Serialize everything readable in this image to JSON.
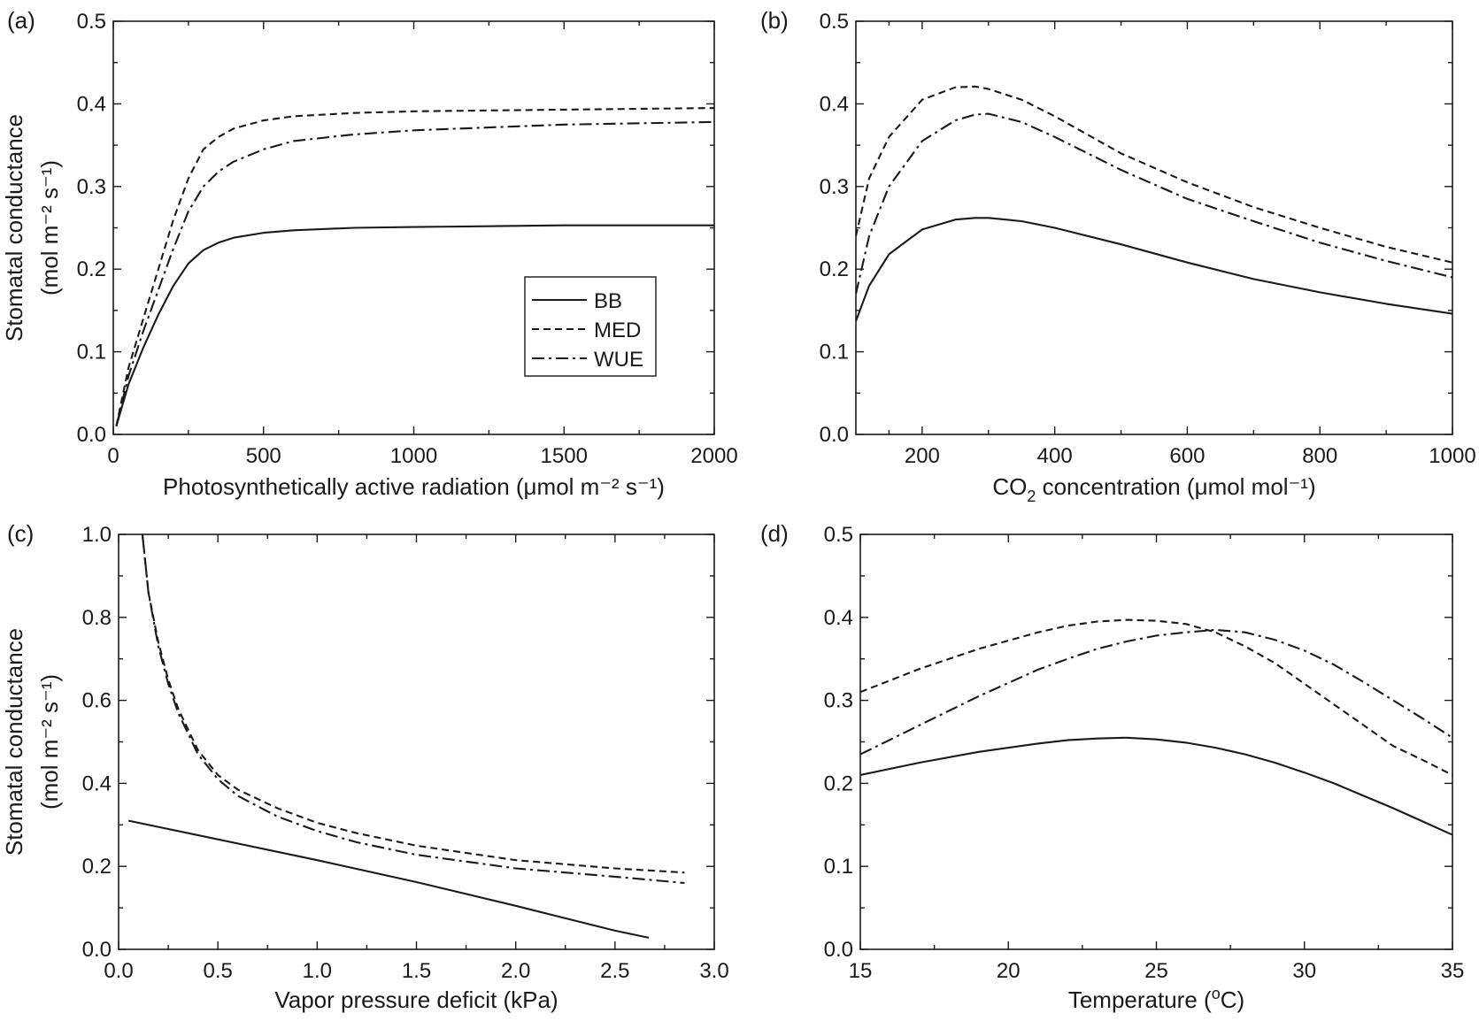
{
  "legend": {
    "entries": [
      {
        "name": "BB",
        "dash": "none"
      },
      {
        "name": "MED",
        "dash": "8 5"
      },
      {
        "name": "WUE",
        "dash": "14 5 3 5"
      }
    ]
  },
  "chart_data": [
    {
      "type": "line",
      "panel_label": "(a)",
      "xlabel": "Photosynthetically active radiation (μmol m⁻² s⁻¹)",
      "ylabel": "Stomatal conductance",
      "ylabel_units": "(mol m⁻² s⁻¹)",
      "xlim": [
        0,
        2000
      ],
      "ylim": [
        0,
        0.5
      ],
      "xticks": [
        0,
        500,
        1000,
        1500,
        2000
      ],
      "xtick_labels": [
        "0",
        "500",
        "1000",
        "1500",
        "2000"
      ],
      "yticks": [
        0.0,
        0.1,
        0.2,
        0.3,
        0.4,
        0.5
      ],
      "ytick_labels": [
        "0.0",
        "0.1",
        "0.2",
        "0.3",
        "0.4",
        "0.5"
      ],
      "legend_position": "center-right",
      "series": [
        {
          "name": "BB",
          "x": [
            10,
            50,
            100,
            150,
            200,
            250,
            300,
            350,
            400,
            500,
            600,
            800,
            1000,
            1500,
            2000
          ],
          "y": [
            0.01,
            0.06,
            0.105,
            0.145,
            0.18,
            0.207,
            0.223,
            0.232,
            0.238,
            0.244,
            0.247,
            0.25,
            0.251,
            0.253,
            0.253
          ]
        },
        {
          "name": "MED",
          "x": [
            10,
            50,
            100,
            150,
            200,
            250,
            300,
            350,
            400,
            500,
            600,
            800,
            1000,
            1500,
            2000
          ],
          "y": [
            0.01,
            0.08,
            0.14,
            0.2,
            0.26,
            0.31,
            0.345,
            0.36,
            0.37,
            0.38,
            0.385,
            0.389,
            0.391,
            0.393,
            0.395
          ]
        },
        {
          "name": "WUE",
          "x": [
            10,
            50,
            100,
            150,
            200,
            250,
            300,
            350,
            400,
            500,
            600,
            800,
            1000,
            1500,
            2000
          ],
          "y": [
            0.01,
            0.07,
            0.125,
            0.175,
            0.225,
            0.27,
            0.3,
            0.318,
            0.33,
            0.345,
            0.355,
            0.363,
            0.368,
            0.375,
            0.378
          ]
        }
      ]
    },
    {
      "type": "line",
      "panel_label": "(b)",
      "xlabel_prefix": "CO",
      "xlabel_sub": "2",
      "xlabel_suffix": " concentration (μmol mol⁻¹)",
      "xlim": [
        100,
        1000
      ],
      "ylim": [
        0,
        0.5
      ],
      "xticks": [
        200,
        400,
        600,
        800,
        1000
      ],
      "xtick_labels": [
        "200",
        "400",
        "600",
        "800",
        "1000"
      ],
      "yticks": [
        0.0,
        0.1,
        0.2,
        0.3,
        0.4,
        0.5
      ],
      "ytick_labels": [
        "0.0",
        "0.1",
        "0.2",
        "0.3",
        "0.4",
        "0.5"
      ],
      "series": [
        {
          "name": "BB",
          "x": [
            100,
            120,
            150,
            200,
            250,
            280,
            300,
            350,
            400,
            500,
            600,
            700,
            800,
            900,
            1000
          ],
          "y": [
            0.137,
            0.18,
            0.218,
            0.248,
            0.26,
            0.262,
            0.262,
            0.258,
            0.25,
            0.23,
            0.208,
            0.188,
            0.172,
            0.158,
            0.146
          ]
        },
        {
          "name": "MED",
          "x": [
            100,
            120,
            150,
            200,
            250,
            280,
            300,
            350,
            400,
            500,
            600,
            700,
            800,
            900,
            1000
          ],
          "y": [
            0.24,
            0.31,
            0.36,
            0.405,
            0.42,
            0.421,
            0.418,
            0.405,
            0.385,
            0.34,
            0.305,
            0.275,
            0.25,
            0.227,
            0.208
          ]
        },
        {
          "name": "WUE",
          "x": [
            100,
            120,
            150,
            200,
            250,
            280,
            300,
            350,
            400,
            500,
            600,
            700,
            800,
            900,
            1000
          ],
          "y": [
            0.17,
            0.24,
            0.3,
            0.355,
            0.38,
            0.387,
            0.388,
            0.378,
            0.36,
            0.32,
            0.285,
            0.258,
            0.232,
            0.21,
            0.19
          ]
        }
      ]
    },
    {
      "type": "line",
      "panel_label": "(c)",
      "xlabel": "Vapor pressure deficit (kPa)",
      "ylabel": "Stomatal conductance",
      "ylabel_units": "(mol m⁻² s⁻¹)",
      "xlim": [
        0,
        3.0
      ],
      "ylim": [
        0,
        1.0
      ],
      "xticks": [
        0.0,
        0.5,
        1.0,
        1.5,
        2.0,
        2.5,
        3.0
      ],
      "xtick_labels": [
        "0.0",
        "0.5",
        "1.0",
        "1.5",
        "2.0",
        "2.5",
        "3.0"
      ],
      "yticks": [
        0.0,
        0.2,
        0.4,
        0.6,
        0.8,
        1.0
      ],
      "ytick_labels": [
        "0.0",
        "0.2",
        "0.4",
        "0.6",
        "0.8",
        "1.0"
      ],
      "series": [
        {
          "name": "BB",
          "x": [
            0.05,
            0.5,
            1.0,
            1.5,
            2.0,
            2.5,
            2.67
          ],
          "y": [
            0.31,
            0.265,
            0.215,
            0.162,
            0.105,
            0.045,
            0.028
          ]
        },
        {
          "name": "MED",
          "x": [
            0.12,
            0.15,
            0.2,
            0.25,
            0.3,
            0.4,
            0.5,
            0.6,
            0.8,
            1.0,
            1.2,
            1.5,
            2.0,
            2.5,
            2.85
          ],
          "y": [
            1.0,
            0.86,
            0.74,
            0.65,
            0.58,
            0.48,
            0.42,
            0.385,
            0.34,
            0.305,
            0.28,
            0.25,
            0.215,
            0.195,
            0.185
          ]
        },
        {
          "name": "WUE",
          "x": [
            0.12,
            0.15,
            0.2,
            0.25,
            0.3,
            0.4,
            0.5,
            0.6,
            0.8,
            1.0,
            1.2,
            1.5,
            2.0,
            2.5,
            2.85
          ],
          "y": [
            1.0,
            0.86,
            0.73,
            0.64,
            0.57,
            0.47,
            0.41,
            0.37,
            0.32,
            0.285,
            0.258,
            0.228,
            0.195,
            0.175,
            0.16
          ]
        }
      ]
    },
    {
      "type": "line",
      "panel_label": "(d)",
      "xlabel_prefix": "Temperature (",
      "xlabel_sup": "o",
      "xlabel_suffix": "C)",
      "xlim": [
        15,
        35
      ],
      "ylim": [
        0,
        0.5
      ],
      "xticks": [
        15,
        20,
        25,
        30,
        35
      ],
      "xtick_labels": [
        "15",
        "20",
        "25",
        "30",
        "35"
      ],
      "yticks": [
        0.0,
        0.1,
        0.2,
        0.3,
        0.4,
        0.5
      ],
      "ytick_labels": [
        "0.0",
        "0.1",
        "0.2",
        "0.3",
        "0.4",
        "0.5"
      ],
      "series": [
        {
          "name": "BB",
          "x": [
            15,
            17,
            19,
            21,
            22,
            23,
            24,
            25,
            26,
            27,
            28,
            29,
            30,
            31,
            32,
            33,
            34,
            35
          ],
          "y": [
            0.21,
            0.225,
            0.238,
            0.248,
            0.252,
            0.254,
            0.255,
            0.253,
            0.249,
            0.243,
            0.235,
            0.225,
            0.213,
            0.2,
            0.185,
            0.17,
            0.154,
            0.138
          ]
        },
        {
          "name": "MED",
          "x": [
            15,
            17,
            19,
            21,
            22,
            23,
            24,
            25,
            26,
            27,
            28,
            29,
            30,
            31,
            32,
            33,
            34,
            35
          ],
          "y": [
            0.31,
            0.338,
            0.362,
            0.382,
            0.39,
            0.395,
            0.397,
            0.396,
            0.392,
            0.382,
            0.365,
            0.345,
            0.32,
            0.295,
            0.27,
            0.245,
            0.228,
            0.21
          ]
        },
        {
          "name": "WUE",
          "x": [
            15,
            17,
            19,
            21,
            22,
            23,
            24,
            25,
            26,
            27,
            28,
            29,
            30,
            31,
            32,
            33,
            34,
            35
          ],
          "y": [
            0.235,
            0.27,
            0.305,
            0.337,
            0.35,
            0.362,
            0.371,
            0.378,
            0.382,
            0.385,
            0.382,
            0.373,
            0.36,
            0.343,
            0.322,
            0.3,
            0.278,
            0.255
          ]
        }
      ]
    }
  ]
}
